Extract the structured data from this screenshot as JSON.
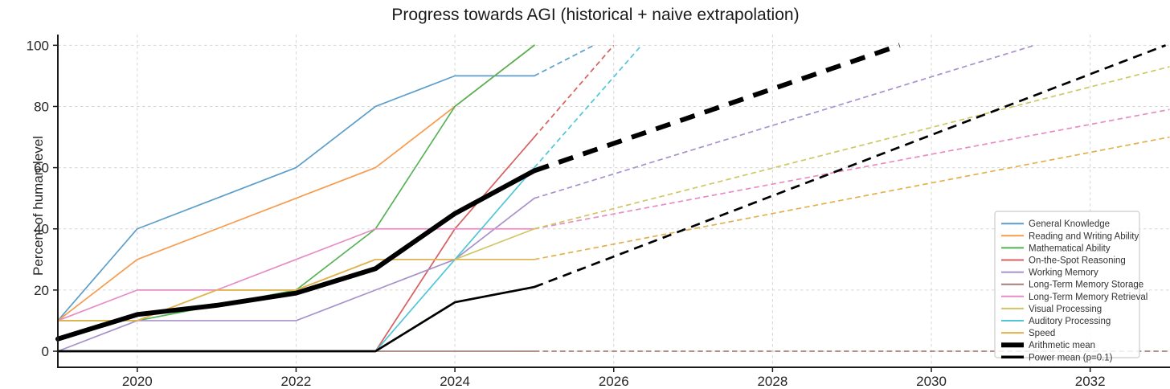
{
  "chart_data": {
    "type": "line",
    "title": "Progress towards AGI (historical + naive extrapolation)",
    "xlabel": "",
    "ylabel": "Percent of human level",
    "xlim": [
      2019,
      2033
    ],
    "ylim": [
      -5.25,
      103.5
    ],
    "x_ticks": [
      2020,
      2022,
      2024,
      2026,
      2028,
      2030,
      2032
    ],
    "y_ticks": [
      0,
      20,
      40,
      60,
      80,
      100
    ],
    "grid": true,
    "grid_style": "dashed",
    "legend_position": "center right",
    "axis_color": "#1a1a1a",
    "grid_color": "#cfcfcf",
    "historical_years": [
      2019,
      2020,
      2021,
      2022,
      2023,
      2024,
      2025
    ],
    "extrapolation_start": 2025,
    "series": [
      {
        "name": "General Knowledge",
        "color": "#5b9ec9",
        "width": 1.7,
        "x": [
          2019,
          2020,
          2021,
          2022,
          2023,
          2024,
          2025
        ],
        "y": [
          10,
          40,
          50,
          60,
          80,
          90,
          90
        ],
        "extrapolation": {
          "x": [
            2025,
            2025.75
          ],
          "y": [
            90,
            100
          ]
        }
      },
      {
        "name": "Reading and Writing Ability",
        "color": "#f59c4d",
        "width": 1.7,
        "x": [
          2019,
          2020,
          2021,
          2022,
          2023,
          2024,
          2025
        ],
        "y": [
          10,
          30,
          40,
          50,
          60,
          80,
          100
        ],
        "extrapolation": null
      },
      {
        "name": "Mathematical Ability",
        "color": "#55b255",
        "width": 1.7,
        "x": [
          2019,
          2020,
          2021,
          2022,
          2023,
          2024,
          2025
        ],
        "y": [
          10,
          10,
          15,
          20,
          40,
          80,
          100
        ],
        "extrapolation": null
      },
      {
        "name": "On-the-Spot Reasoning",
        "color": "#d66060",
        "width": 1.7,
        "x": [
          2019,
          2020,
          2021,
          2022,
          2023,
          2024,
          2025
        ],
        "y": [
          0,
          0,
          0,
          0,
          0,
          40,
          70
        ],
        "extrapolation": {
          "x": [
            2025,
            2026
          ],
          "y": [
            70,
            100
          ]
        }
      },
      {
        "name": "Working Memory",
        "color": "#a792cb",
        "width": 1.7,
        "x": [
          2019,
          2020,
          2021,
          2022,
          2023,
          2024,
          2025
        ],
        "y": [
          0,
          10,
          10,
          10,
          20,
          30,
          50
        ],
        "extrapolation": {
          "x": [
            2025,
            2031.3
          ],
          "y": [
            50,
            100
          ]
        }
      },
      {
        "name": "Long-Term Memory Storage",
        "color": "#a5807b",
        "width": 1.7,
        "x": [
          2019,
          2020,
          2021,
          2022,
          2023,
          2024,
          2025
        ],
        "y": [
          0,
          0,
          0,
          0,
          0,
          0,
          0
        ],
        "extrapolation": {
          "x": [
            2025,
            2033
          ],
          "y": [
            0,
            0
          ]
        }
      },
      {
        "name": "Long-Term Memory Retrieval",
        "color": "#e78cc5",
        "width": 1.7,
        "x": [
          2019,
          2020,
          2021,
          2022,
          2023,
          2024,
          2025
        ],
        "y": [
          10,
          20,
          20,
          30,
          40,
          40,
          40
        ],
        "extrapolation": {
          "x": [
            2025,
            2033
          ],
          "y": [
            40,
            79
          ]
        }
      },
      {
        "name": "Visual Processing",
        "color": "#cfc765",
        "width": 1.7,
        "x": [
          2019,
          2020,
          2021,
          2022,
          2023,
          2024,
          2025
        ],
        "y": [
          10,
          10,
          20,
          20,
          30,
          30,
          40
        ],
        "extrapolation": {
          "x": [
            2025,
            2033
          ],
          "y": [
            40,
            93
          ]
        }
      },
      {
        "name": "Auditory Processing",
        "color": "#50c6d8",
        "width": 1.7,
        "x": [
          2023,
          2024,
          2025
        ],
        "y": [
          0,
          30,
          60
        ],
        "extrapolation": {
          "x": [
            2025,
            2026.35
          ],
          "y": [
            60,
            100
          ]
        }
      },
      {
        "name": "Speed",
        "color": "#e2b14c",
        "width": 1.7,
        "x": [
          2019,
          2020,
          2021,
          2022,
          2023,
          2024,
          2025
        ],
        "y": [
          10,
          10,
          20,
          20,
          30,
          30,
          30
        ],
        "extrapolation": {
          "x": [
            2025,
            2033
          ],
          "y": [
            30,
            70
          ]
        }
      },
      {
        "name": "Arithmetic mean",
        "color": "#000000",
        "width": 6,
        "dash": [
          19,
          13
        ],
        "x": [
          2019,
          2020,
          2021,
          2022,
          2023,
          2024,
          2025
        ],
        "y": [
          4,
          12,
          15,
          19,
          27,
          45,
          59
        ],
        "extrapolation": {
          "x": [
            2025,
            2029.6
          ],
          "y": [
            59,
            100
          ]
        }
      },
      {
        "name": "Power mean (p=0.1)",
        "color": "#000000",
        "width": 2.7,
        "dash": [
          11.5,
          7.5
        ],
        "x": [
          2019,
          2020,
          2021,
          2022,
          2023,
          2024,
          2025
        ],
        "y": [
          0,
          0,
          0,
          0,
          0,
          16,
          21
        ],
        "extrapolation": {
          "x": [
            2025,
            2032.95
          ],
          "y": [
            21,
            100
          ]
        }
      }
    ]
  }
}
